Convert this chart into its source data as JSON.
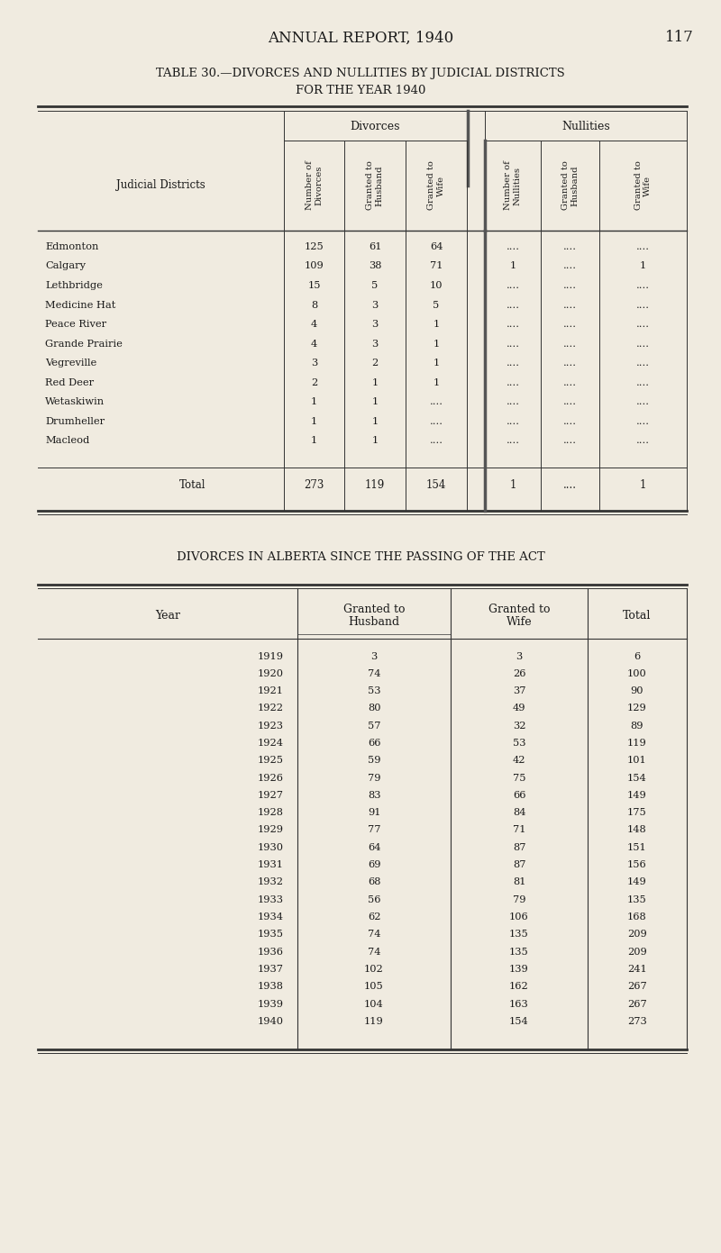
{
  "page_header": "ANNUAL REPORT, 1940",
  "page_number": "117",
  "table1_title1": "TABLE 30.—DIVORCES AND NULLITIES BY JUDICIAL DISTRICTS",
  "table1_title2": "FOR THE YEAR 1940",
  "table1_rows": [
    [
      "Edmonton",
      "125",
      "61",
      "64",
      "....",
      "....",
      "...."
    ],
    [
      "Calgary",
      "109",
      "38",
      "71",
      "1",
      "....",
      "1"
    ],
    [
      "Lethbridge",
      "15",
      "5",
      "10",
      "....",
      "....",
      "...."
    ],
    [
      "Medicine Hat",
      "8",
      "3",
      "5",
      "....",
      "....",
      "...."
    ],
    [
      "Peace River",
      "4",
      "3",
      "1",
      "....",
      "....",
      "...."
    ],
    [
      "Grande Prairie",
      "4",
      "3",
      "1",
      "....",
      "....",
      "...."
    ],
    [
      "Vegreville",
      "3",
      "2",
      "1",
      "....",
      "....",
      "...."
    ],
    [
      "Red Deer",
      "2",
      "1",
      "1",
      "....",
      "....",
      "...."
    ],
    [
      "Wetaskiwin",
      "1",
      "1",
      "....",
      "....",
      "....",
      "...."
    ],
    [
      "Drumheller",
      "1",
      "1",
      "....",
      "....",
      "....",
      "...."
    ],
    [
      "Macleod",
      "1",
      "1",
      "....",
      "....",
      "....",
      "...."
    ]
  ],
  "table1_total": [
    "Total",
    "273",
    "119",
    "154",
    "1",
    "....",
    "1"
  ],
  "table2_title": "DIVORCES IN ALBERTA SINCE THE PASSING OF THE ACT",
  "table2_rows": [
    [
      "1919",
      "3",
      "3",
      "6"
    ],
    [
      "1920",
      "74",
      "26",
      "100"
    ],
    [
      "1921",
      "53",
      "37",
      "90"
    ],
    [
      "1922",
      "80",
      "49",
      "129"
    ],
    [
      "1923",
      "57",
      "32",
      "89"
    ],
    [
      "1924",
      "66",
      "53",
      "119"
    ],
    [
      "1925",
      "59",
      "42",
      "101"
    ],
    [
      "1926",
      "79",
      "75",
      "154"
    ],
    [
      "1927",
      "83",
      "66",
      "149"
    ],
    [
      "1928",
      "91",
      "84",
      "175"
    ],
    [
      "1929",
      "77",
      "71",
      "148"
    ],
    [
      "1930",
      "64",
      "87",
      "151"
    ],
    [
      "1931",
      "69",
      "87",
      "156"
    ],
    [
      "1932",
      "68",
      "81",
      "149"
    ],
    [
      "1933",
      "56",
      "79",
      "135"
    ],
    [
      "1934",
      "62",
      "106",
      "168"
    ],
    [
      "1935",
      "74",
      "135",
      "209"
    ],
    [
      "1936",
      "74",
      "135",
      "209"
    ],
    [
      "1937",
      "102",
      "139",
      "241"
    ],
    [
      "1938",
      "105",
      "162",
      "267"
    ],
    [
      "1939",
      "104",
      "163",
      "267"
    ],
    [
      "1940",
      "119",
      "154",
      "273"
    ]
  ],
  "bg_color": "#f0ebe0",
  "text_color": "#1a1a1a"
}
